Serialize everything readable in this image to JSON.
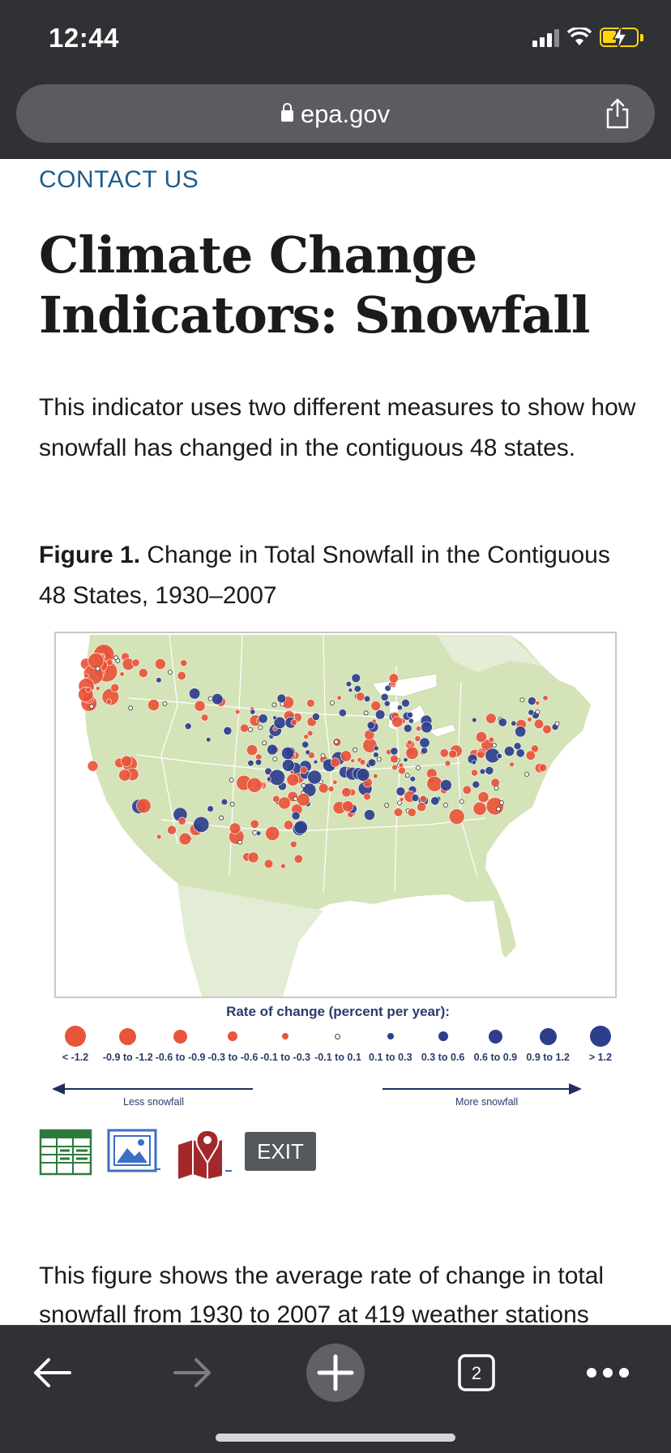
{
  "status_bar": {
    "time": "12:44"
  },
  "browser": {
    "url": "epa.gov",
    "tab_count": "2"
  },
  "page": {
    "contact_link": "CONTACT US",
    "title": "Climate Change Indicators: Snowfall",
    "intro": "This indicator uses two different measures to show how snowfall has changed in the contiguous 48 states.",
    "figure_label": "Figure 1.",
    "figure_title": "Change in Total Snowfall in the Contiguous 48 States, 1930–2007",
    "description": "This figure shows the average rate of change in total snowfall from 1930 to 2007 at 419 weather stations"
  },
  "legend": {
    "title": "Rate of change (percent per year):",
    "items": [
      {
        "label": "< -1.2",
        "color": "#e8553a"
      },
      {
        "label": "-0.9 to -1.2",
        "color": "#e8553a"
      },
      {
        "label": "-0.6 to -0.9",
        "color": "#e8553a"
      },
      {
        "label": "-0.3 to -0.6",
        "color": "#e8553a"
      },
      {
        "label": "-0.1 to -0.3",
        "color": "#e8553a"
      },
      {
        "label": "-0.1 to 0.1",
        "color": "#ffffff"
      },
      {
        "label": "0.1 to 0.3",
        "color": "#2d3e8c"
      },
      {
        "label": "0.3 to 0.6",
        "color": "#2d3e8c"
      },
      {
        "label": "0.6 to 0.9",
        "color": "#2d3e8c"
      },
      {
        "label": "0.9 to 1.2",
        "color": "#2d3e8c"
      },
      {
        "label": "> 1.2",
        "color": "#2d3e8c"
      }
    ],
    "less_label": "Less snowfall",
    "more_label": "More snowfall"
  },
  "tools": {
    "exit_label": "EXIT",
    "data_icon": "spreadsheet-icon",
    "image_icon": "image-icon",
    "map_icon": "map-pin-icon"
  },
  "colors": {
    "decrease": "#e8553a",
    "increase": "#2d3e8c",
    "land": "#d5e3b8",
    "link": "#1f5d8c"
  }
}
